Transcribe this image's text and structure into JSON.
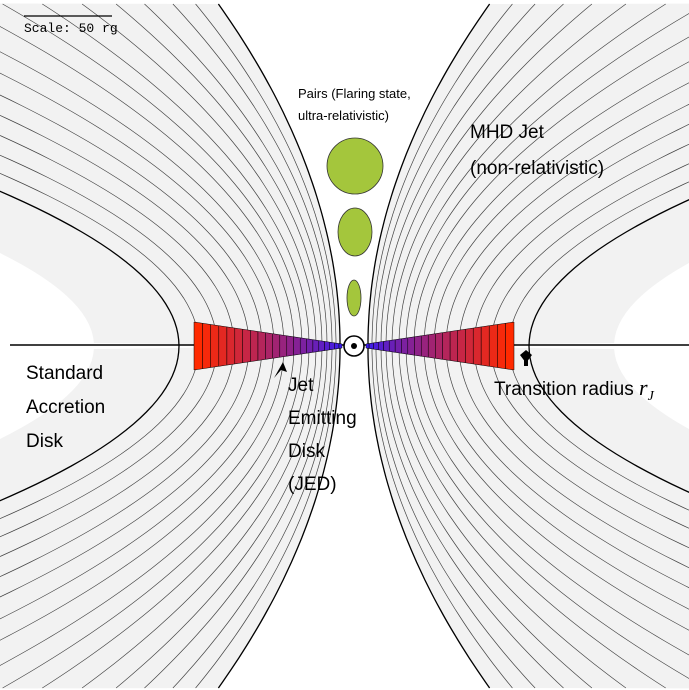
{
  "scale_label": "Scale: 50 rg",
  "labels": {
    "pairs": [
      "Pairs (Flaring state,",
      "ultra-relativistic)"
    ],
    "mhd_jet": [
      "MHD Jet",
      "(non-relativistic)"
    ],
    "sad": [
      "Standard",
      "Accretion",
      "Disk"
    ],
    "jed": [
      "Jet",
      "Emitting",
      "Disk",
      "(JED)"
    ],
    "transition_text": "Transition radius",
    "transition_symbol": "r",
    "transition_subscript": "J"
  },
  "colors": {
    "jet_fill": "#f2f2f2",
    "field_line": "#444444",
    "blob": "#a4c63c",
    "blob_stroke": "#333333",
    "disk_outer": "#ff2a00",
    "disk_inner": "#3a1cf0",
    "midplane": "#5a3a70"
  },
  "icons": [
    "black-hole-icon",
    "arrow-up-icon"
  ]
}
